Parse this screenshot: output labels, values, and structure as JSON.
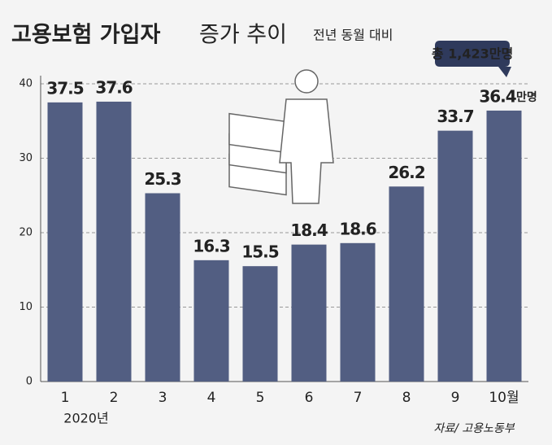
{
  "chart_data": {
    "type": "bar",
    "title": "고용보험 가입자",
    "title_suffix": "증가 추이",
    "subtitle": "전년 동월 대비",
    "categories": [
      "1",
      "2",
      "3",
      "4",
      "5",
      "6",
      "7",
      "8",
      "9",
      "10월"
    ],
    "year_label": "2020년",
    "values": [
      37.5,
      37.6,
      25.3,
      16.3,
      15.5,
      18.4,
      18.6,
      26.2,
      33.7,
      36.4
    ],
    "unit": "만명",
    "annotation": "총 1,423만명",
    "source": "자료/ 고용노동부",
    "color": "#525e82",
    "ylim": [
      0,
      40
    ],
    "yticks": [
      0,
      10,
      20,
      30,
      40
    ],
    "grid": true
  }
}
